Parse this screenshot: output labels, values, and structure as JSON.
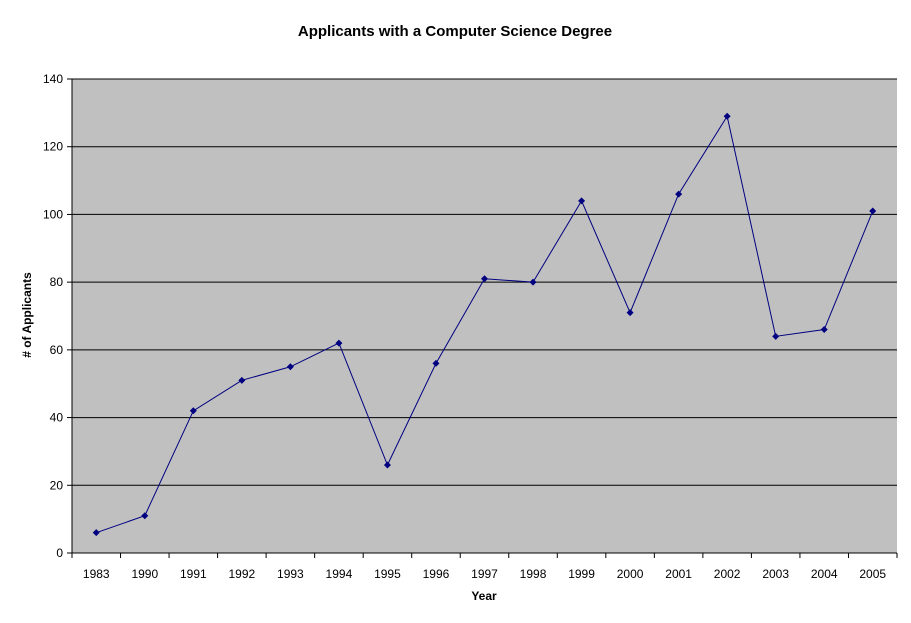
{
  "chart_data": {
    "type": "line",
    "title": "Applicants with a Computer Science Degree",
    "xlabel": "Year",
    "ylabel": "# of Applicants",
    "categories": [
      "1983",
      "1990",
      "1991",
      "1992",
      "1993",
      "1994",
      "1995",
      "1996",
      "1997",
      "1998",
      "1999",
      "2000",
      "2001",
      "2002",
      "2003",
      "2004",
      "2005"
    ],
    "series": [
      {
        "values": [
          6,
          11,
          42,
          51,
          55,
          62,
          26,
          56,
          81,
          80,
          104,
          71,
          106,
          129,
          64,
          66,
          101
        ]
      }
    ],
    "ylim": [
      0,
      140
    ],
    "yticks": [
      "0",
      "20",
      "40",
      "60",
      "80",
      "100",
      "120",
      "140"
    ],
    "grid": "horizontal",
    "legend": "none",
    "colors": {
      "plot_background": "#c0c0c0",
      "line": "#000080",
      "marker": "#000080",
      "gridline": "#000000",
      "axis": "#000000"
    },
    "marker": "diamond"
  }
}
